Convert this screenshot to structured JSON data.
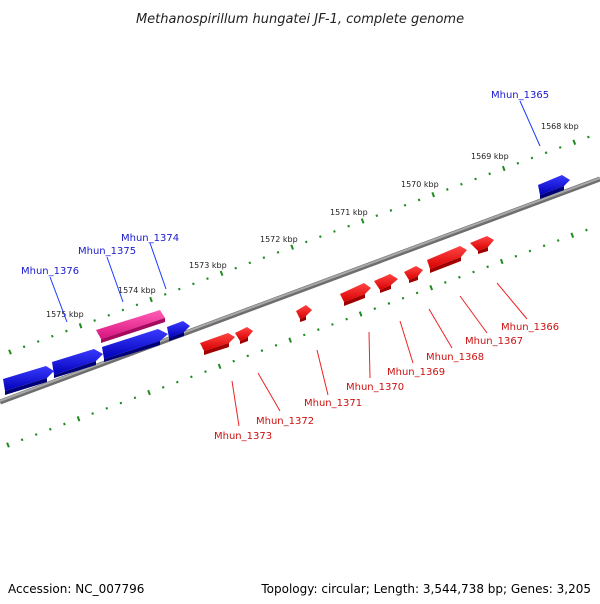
{
  "title": "Methanospirillum hungatei JF-1, complete genome",
  "footer": {
    "accession": "Accession: NC_007796",
    "summary": "Topology: circular; Length: 3,544,738 bp; Genes: 3,205"
  },
  "colors": {
    "forward_gene": "#0000cc",
    "forward_highlight": "#e8168c",
    "reverse_gene": "#ee0000",
    "tick": "#1f8a1f",
    "backbone": "#8a8a8a"
  },
  "kbp_labels": [
    "1568 kbp",
    "1569 kbp",
    "1570 kbp",
    "1571 kbp",
    "1572 kbp",
    "1573 kbp",
    "1574 kbp",
    "1575 kbp"
  ],
  "forward_labels": [
    "Mhun_1365",
    "Mhun_1374",
    "Mhun_1375",
    "Mhun_1376"
  ],
  "reverse_labels": [
    "Mhun_1366",
    "Mhun_1367",
    "Mhun_1368",
    "Mhun_1369",
    "Mhun_1370",
    "Mhun_1371",
    "Mhun_1372",
    "Mhun_1373"
  ]
}
